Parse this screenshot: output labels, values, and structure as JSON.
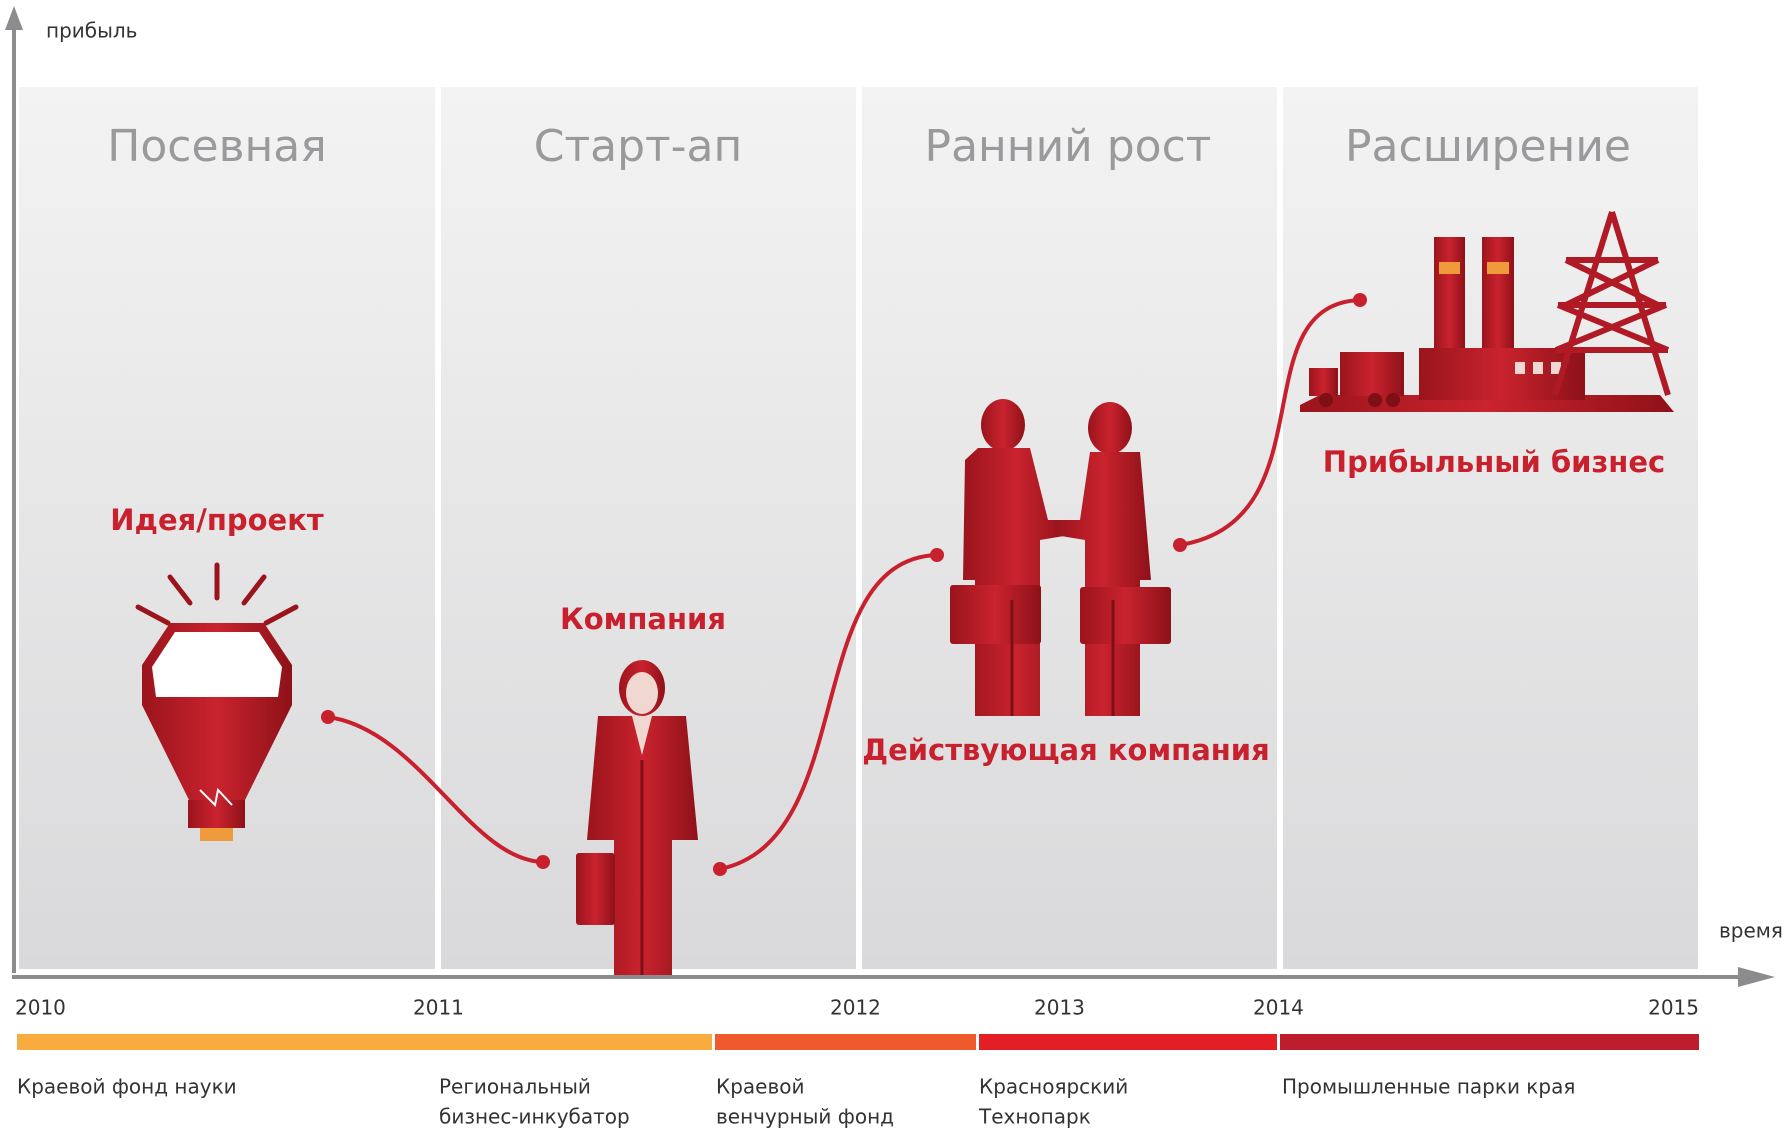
{
  "axes": {
    "y_label": "прибыль",
    "x_label": "время"
  },
  "stages": [
    "Посевная",
    "Старт-ап",
    "Ранний рост",
    "Расширение"
  ],
  "milestones": [
    "Идея/проект",
    "Компания",
    "Действующая компания",
    "Прибыльный бизнес"
  ],
  "years": [
    "2010",
    "2011",
    "2012",
    "2013",
    "2014",
    "2015"
  ],
  "funds": [
    {
      "lines": [
        "Краевой фонд науки"
      ]
    },
    {
      "lines": [
        "Региональный",
        "бизнес-инкубатор"
      ]
    },
    {
      "lines": [
        "Краевой",
        "венчурный фонд"
      ]
    },
    {
      "lines": [
        "Красноярский",
        "Технопарк"
      ]
    },
    {
      "lines": [
        "Промышленные парки края"
      ]
    }
  ]
}
